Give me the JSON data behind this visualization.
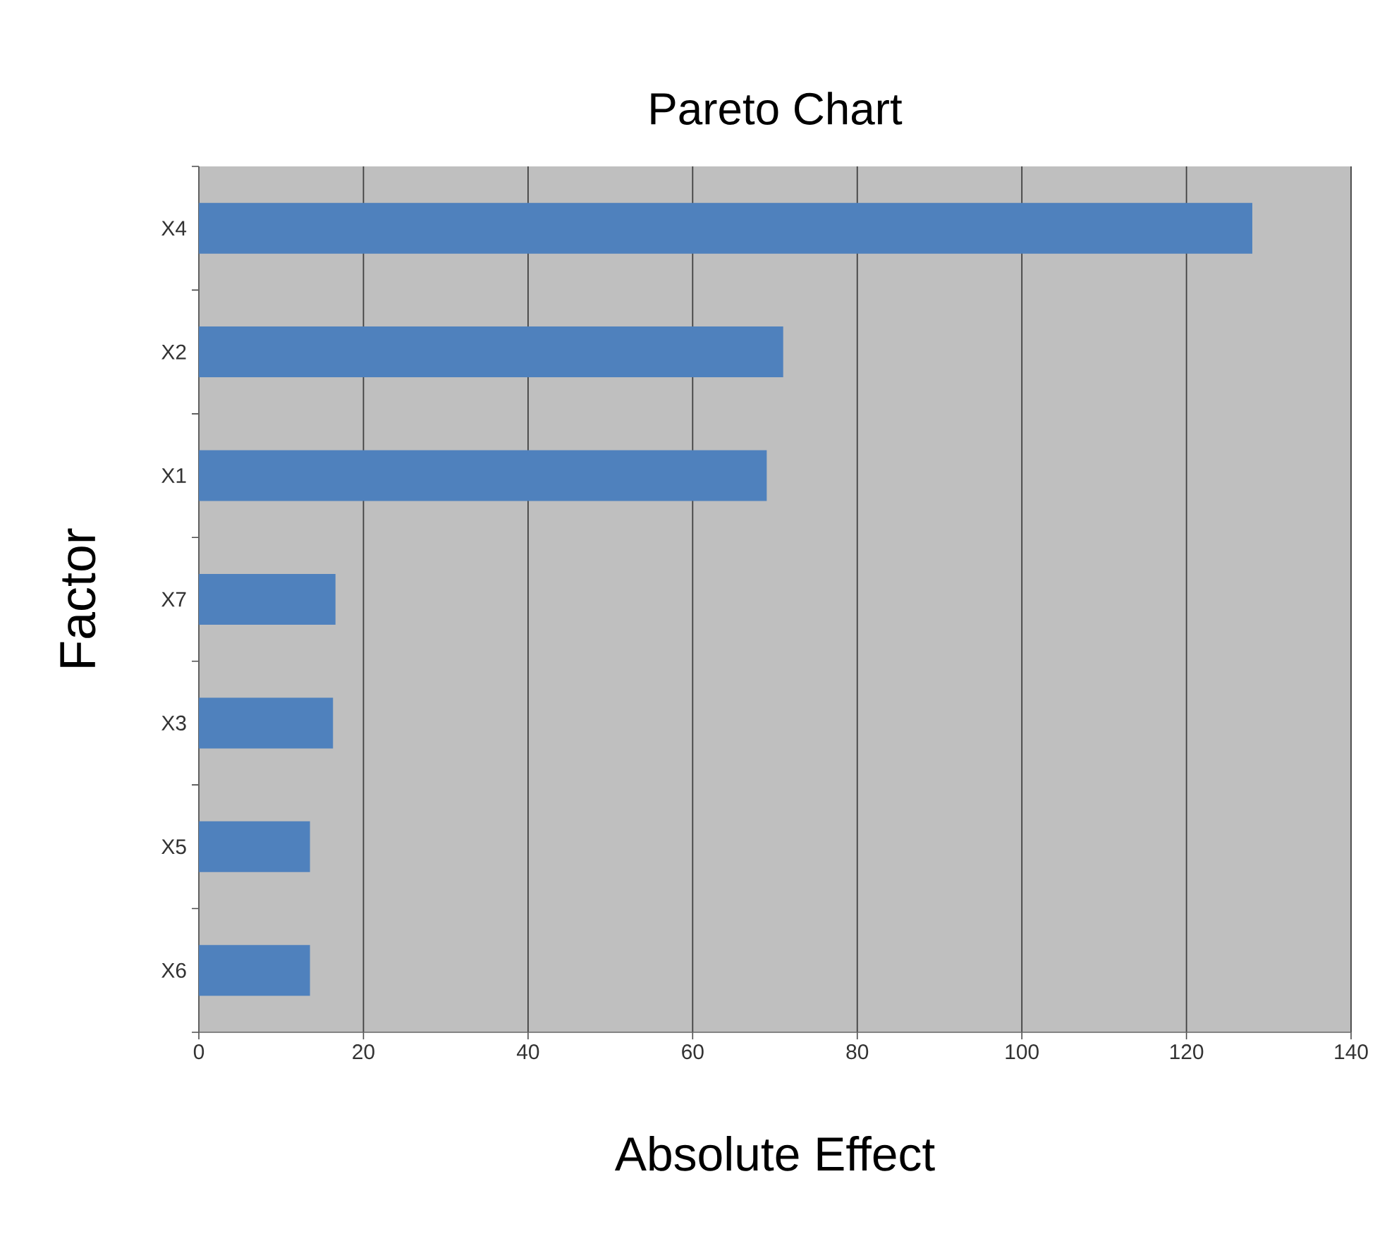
{
  "chart_data": {
    "type": "bar",
    "orientation": "horizontal",
    "title": "Pareto Chart",
    "xlabel": "Absolute Effect",
    "ylabel": "Factor",
    "categories": [
      "X4",
      "X2",
      "X1",
      "X7",
      "X3",
      "X5",
      "X6"
    ],
    "values": [
      128,
      71,
      69,
      16.6,
      16.3,
      13.5,
      13.5
    ],
    "color": "#4f81bd",
    "xlim": [
      0,
      140
    ],
    "xticks": [
      0,
      20,
      40,
      60,
      80,
      100,
      120,
      140
    ],
    "grid": "x"
  }
}
